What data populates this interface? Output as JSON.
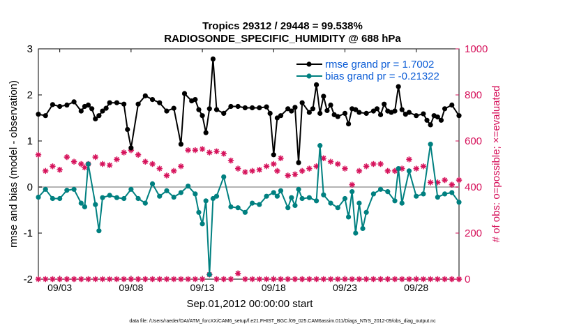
{
  "chart_data": {
    "type": "line",
    "title_line1": "Tropics 29312 / 29448 = 99.538%",
    "title_line2": "RADIOSONDE_SPECIFIC_HUMIDITY @ 688 hPa",
    "xlabel": "Sep.01,2012 00:00:00 start",
    "ylabel_left": "rmse and bias (model - observation)",
    "ylabel_right": "# of obs: o=possible; ×=evaluated",
    "footer": "data file: /Users/raeder/DAI/ATM_forcXX/CAM6_setup/f.e21.FHIST_BGC.f09_025.CAM6assim.011/Diags_NTrS_2012-09/obs_diag_output.nc",
    "x_ticks": [
      {
        "label": "09/03",
        "value": 3
      },
      {
        "label": "09/08",
        "value": 8
      },
      {
        "label": "09/13",
        "value": 13
      },
      {
        "label": "09/18",
        "value": 18
      },
      {
        "label": "09/23",
        "value": 23
      },
      {
        "label": "09/28",
        "value": 28
      }
    ],
    "y_left_ticks": [
      "-2",
      "-1",
      "0",
      "1",
      "2",
      "3"
    ],
    "y_right_ticks": [
      "0",
      "200",
      "400",
      "600",
      "800",
      "1000"
    ],
    "xlim": [
      1.5,
      31.0
    ],
    "ylim_left": [
      -2,
      3
    ],
    "ylim_right": [
      0,
      1000
    ],
    "legend": [
      {
        "name": "rmse grand pr = 1.7002",
        "color": "#0b5cd6"
      },
      {
        "name": "bias grand pr = -0.21322",
        "color": "#0b5cd6"
      }
    ],
    "colors": {
      "rmse": "#000000",
      "bias": "#008080",
      "obs": "#d6125b",
      "zero_line": "#b3b3b3"
    },
    "rmse_values": [
      [
        1.5,
        1.58
      ],
      [
        2.0,
        1.55
      ],
      [
        2.5,
        1.79
      ],
      [
        3.0,
        1.75
      ],
      [
        3.5,
        1.78
      ],
      [
        4.0,
        1.85
      ],
      [
        4.5,
        1.65
      ],
      [
        4.75,
        1.75
      ],
      [
        5.0,
        1.78
      ],
      [
        5.25,
        1.7
      ],
      [
        5.5,
        1.48
      ],
      [
        5.75,
        1.55
      ],
      [
        6.0,
        1.65
      ],
      [
        6.25,
        1.71
      ],
      [
        6.5,
        1.83
      ],
      [
        7.0,
        1.83
      ],
      [
        7.5,
        1.8
      ],
      [
        7.75,
        1.25
      ],
      [
        8.0,
        0.85
      ],
      [
        8.5,
        1.8
      ],
      [
        9.0,
        1.98
      ],
      [
        9.5,
        1.9
      ],
      [
        10.0,
        1.83
      ],
      [
        10.5,
        1.65
      ],
      [
        11.0,
        1.71
      ],
      [
        11.5,
        0.93
      ],
      [
        11.75,
        2.03
      ],
      [
        12.25,
        1.87
      ],
      [
        12.5,
        1.9
      ],
      [
        12.75,
        1.68
      ],
      [
        13.0,
        1.55
      ],
      [
        13.25,
        1.18
      ],
      [
        13.5,
        1.7
      ],
      [
        13.75,
        2.78
      ],
      [
        14.0,
        1.68
      ],
      [
        14.5,
        1.6
      ],
      [
        15.0,
        1.75
      ],
      [
        15.5,
        1.75
      ],
      [
        16.0,
        1.72
      ],
      [
        16.5,
        1.72
      ],
      [
        17.0,
        1.72
      ],
      [
        17.5,
        1.74
      ],
      [
        17.75,
        1.6
      ],
      [
        18.0,
        0.7
      ],
      [
        18.25,
        1.5
      ],
      [
        18.5,
        1.55
      ],
      [
        19.0,
        1.7
      ],
      [
        19.25,
        1.65
      ],
      [
        19.5,
        1.73
      ],
      [
        19.75,
        0.53
      ],
      [
        20.0,
        1.83
      ],
      [
        20.5,
        1.62
      ],
      [
        20.75,
        1.7
      ],
      [
        21.0,
        2.22
      ],
      [
        21.25,
        1.6
      ],
      [
        21.5,
        1.97
      ],
      [
        21.75,
        1.66
      ],
      [
        22.0,
        1.78
      ],
      [
        22.25,
        1.57
      ],
      [
        22.5,
        1.53
      ],
      [
        23.0,
        1.6
      ],
      [
        23.25,
        1.37
      ],
      [
        23.5,
        1.7
      ],
      [
        23.75,
        1.68
      ],
      [
        24.0,
        1.62
      ],
      [
        24.5,
        1.6
      ],
      [
        25.0,
        1.65
      ],
      [
        25.25,
        1.7
      ],
      [
        25.5,
        1.57
      ],
      [
        25.75,
        1.8
      ],
      [
        26.0,
        1.65
      ],
      [
        26.25,
        1.62
      ],
      [
        26.5,
        1.65
      ],
      [
        26.75,
        2.18
      ],
      [
        27.0,
        1.68
      ],
      [
        27.25,
        1.58
      ],
      [
        27.5,
        1.62
      ],
      [
        28.0,
        1.55
      ],
      [
        28.5,
        1.59
      ],
      [
        28.75,
        1.45
      ],
      [
        29.0,
        1.35
      ],
      [
        29.25,
        1.55
      ],
      [
        29.5,
        1.52
      ],
      [
        29.75,
        1.45
      ],
      [
        30.0,
        1.7
      ],
      [
        30.5,
        1.78
      ],
      [
        31.0,
        1.55
      ]
    ],
    "bias_values": [
      [
        1.5,
        -0.22
      ],
      [
        2.0,
        -0.05
      ],
      [
        2.5,
        -0.25
      ],
      [
        3.0,
        -0.25
      ],
      [
        3.5,
        -0.07
      ],
      [
        4.0,
        -0.05
      ],
      [
        4.5,
        -0.35
      ],
      [
        4.75,
        -0.43
      ],
      [
        5.0,
        0.5
      ],
      [
        5.5,
        -0.38
      ],
      [
        5.75,
        -0.95
      ],
      [
        6.0,
        -0.23
      ],
      [
        6.5,
        -0.18
      ],
      [
        7.0,
        -0.23
      ],
      [
        7.5,
        -0.25
      ],
      [
        8.0,
        -0.05
      ],
      [
        8.5,
        -0.25
      ],
      [
        9.0,
        -0.35
      ],
      [
        9.5,
        0.07
      ],
      [
        10.0,
        -0.2
      ],
      [
        10.5,
        -0.08
      ],
      [
        11.0,
        -0.22
      ],
      [
        11.5,
        -0.12
      ],
      [
        12.0,
        0.02
      ],
      [
        12.5,
        -0.15
      ],
      [
        12.75,
        -0.55
      ],
      [
        13.0,
        -0.8
      ],
      [
        13.25,
        -0.3
      ],
      [
        13.5,
        -1.9
      ],
      [
        13.75,
        -0.25
      ],
      [
        14.0,
        -0.2
      ],
      [
        14.5,
        0.22
      ],
      [
        15.0,
        -0.43
      ],
      [
        15.5,
        -0.45
      ],
      [
        16.0,
        -0.55
      ],
      [
        16.5,
        -0.35
      ],
      [
        17.0,
        -0.38
      ],
      [
        17.5,
        -0.2
      ],
      [
        18.0,
        -0.12
      ],
      [
        18.25,
        -0.2
      ],
      [
        18.5,
        -0.08
      ],
      [
        19.0,
        -0.45
      ],
      [
        19.25,
        -0.23
      ],
      [
        19.5,
        -0.4
      ],
      [
        19.75,
        -0.05
      ],
      [
        20.0,
        -0.25
      ],
      [
        20.5,
        -0.23
      ],
      [
        21.0,
        -0.3
      ],
      [
        21.25,
        0.9
      ],
      [
        21.5,
        -0.17
      ],
      [
        22.0,
        -0.35
      ],
      [
        22.5,
        -0.45
      ],
      [
        23.0,
        -0.25
      ],
      [
        23.25,
        -0.65
      ],
      [
        23.5,
        -0.1
      ],
      [
        23.75,
        -1.0
      ],
      [
        24.0,
        -0.35
      ],
      [
        24.25,
        -0.9
      ],
      [
        24.5,
        -0.55
      ],
      [
        25.0,
        -0.15
      ],
      [
        25.5,
        -0.05
      ],
      [
        26.0,
        -0.1
      ],
      [
        26.5,
        -0.3
      ],
      [
        26.75,
        0.4
      ],
      [
        27.0,
        -0.35
      ],
      [
        27.5,
        0.35
      ],
      [
        28.0,
        -0.2
      ],
      [
        28.5,
        -0.15
      ],
      [
        29.0,
        0.93
      ],
      [
        29.5,
        -0.22
      ],
      [
        30.0,
        -0.15
      ],
      [
        30.5,
        -0.12
      ],
      [
        31.0,
        -0.33
      ]
    ],
    "obs_possible_values": [
      [
        1.5,
        540
      ],
      [
        2.0,
        470
      ],
      [
        2.5,
        490
      ],
      [
        3.0,
        475
      ],
      [
        3.5,
        530
      ],
      [
        4.0,
        510
      ],
      [
        4.5,
        500
      ],
      [
        4.75,
        485
      ],
      [
        5.0,
        500
      ],
      [
        5.5,
        530
      ],
      [
        6.0,
        500
      ],
      [
        6.5,
        495
      ],
      [
        7.0,
        520
      ],
      [
        7.5,
        550
      ],
      [
        8.0,
        560
      ],
      [
        8.5,
        540
      ],
      [
        9.0,
        510
      ],
      [
        9.5,
        500
      ],
      [
        10.0,
        480
      ],
      [
        10.5,
        450
      ],
      [
        11.0,
        470
      ],
      [
        11.5,
        490
      ],
      [
        12.0,
        560
      ],
      [
        12.5,
        560
      ],
      [
        13.0,
        565
      ],
      [
        13.5,
        550
      ],
      [
        14.0,
        555
      ],
      [
        14.5,
        545
      ],
      [
        15.0,
        515
      ],
      [
        15.5,
        480
      ],
      [
        16.0,
        465
      ],
      [
        16.5,
        470
      ],
      [
        17.0,
        475
      ],
      [
        17.5,
        490
      ],
      [
        18.0,
        500
      ],
      [
        18.25,
        470
      ],
      [
        18.5,
        525
      ],
      [
        19.0,
        450
      ],
      [
        19.5,
        455
      ],
      [
        20.0,
        470
      ],
      [
        20.5,
        480
      ],
      [
        21.0,
        490
      ],
      [
        21.5,
        525
      ],
      [
        22.0,
        510
      ],
      [
        22.5,
        500
      ],
      [
        23.0,
        480
      ],
      [
        23.5,
        410
      ],
      [
        24.0,
        470
      ],
      [
        24.5,
        490
      ],
      [
        25.0,
        500
      ],
      [
        25.5,
        500
      ],
      [
        26.0,
        470
      ],
      [
        26.5,
        470
      ],
      [
        27.0,
        480
      ],
      [
        27.5,
        520
      ],
      [
        28.0,
        480
      ],
      [
        28.5,
        490
      ],
      [
        29.0,
        420
      ],
      [
        29.5,
        420
      ],
      [
        30.0,
        430
      ],
      [
        30.5,
        410
      ],
      [
        31.0,
        430
      ]
    ],
    "obs_evaluated_values": [
      [
        1.5,
        0
      ],
      [
        2.0,
        0
      ],
      [
        2.5,
        0
      ],
      [
        3.0,
        0
      ],
      [
        3.5,
        0
      ],
      [
        4.0,
        0
      ],
      [
        4.5,
        0
      ],
      [
        5.0,
        0
      ],
      [
        5.5,
        0
      ],
      [
        6.0,
        0
      ],
      [
        6.5,
        0
      ],
      [
        7.0,
        0
      ],
      [
        7.5,
        0
      ],
      [
        8.0,
        0
      ],
      [
        8.5,
        0
      ],
      [
        9.0,
        0
      ],
      [
        9.5,
        0
      ],
      [
        10.0,
        0
      ],
      [
        10.5,
        0
      ],
      [
        11.0,
        0
      ],
      [
        11.5,
        0
      ],
      [
        12.0,
        0
      ],
      [
        12.5,
        0
      ],
      [
        13.0,
        0
      ],
      [
        13.5,
        20
      ],
      [
        14.0,
        0
      ],
      [
        14.5,
        0
      ],
      [
        15.0,
        0
      ],
      [
        15.5,
        25
      ],
      [
        16.0,
        0
      ],
      [
        16.5,
        0
      ],
      [
        17.0,
        0
      ],
      [
        17.5,
        0
      ],
      [
        18.0,
        0
      ],
      [
        18.5,
        0
      ],
      [
        19.0,
        0
      ],
      [
        19.5,
        0
      ],
      [
        20.0,
        0
      ],
      [
        20.5,
        0
      ],
      [
        21.0,
        0
      ],
      [
        21.5,
        0
      ],
      [
        22.0,
        0
      ],
      [
        22.5,
        0
      ],
      [
        23.0,
        0
      ],
      [
        23.5,
        0
      ],
      [
        24.0,
        0
      ],
      [
        24.5,
        0
      ],
      [
        25.0,
        0
      ],
      [
        25.5,
        0
      ],
      [
        26.0,
        0
      ],
      [
        26.5,
        0
      ],
      [
        27.0,
        0
      ],
      [
        27.5,
        0
      ],
      [
        28.0,
        0
      ],
      [
        28.5,
        0
      ],
      [
        29.0,
        0
      ],
      [
        29.5,
        0
      ],
      [
        30.0,
        0
      ],
      [
        30.5,
        0
      ],
      [
        31.0,
        0
      ]
    ]
  }
}
